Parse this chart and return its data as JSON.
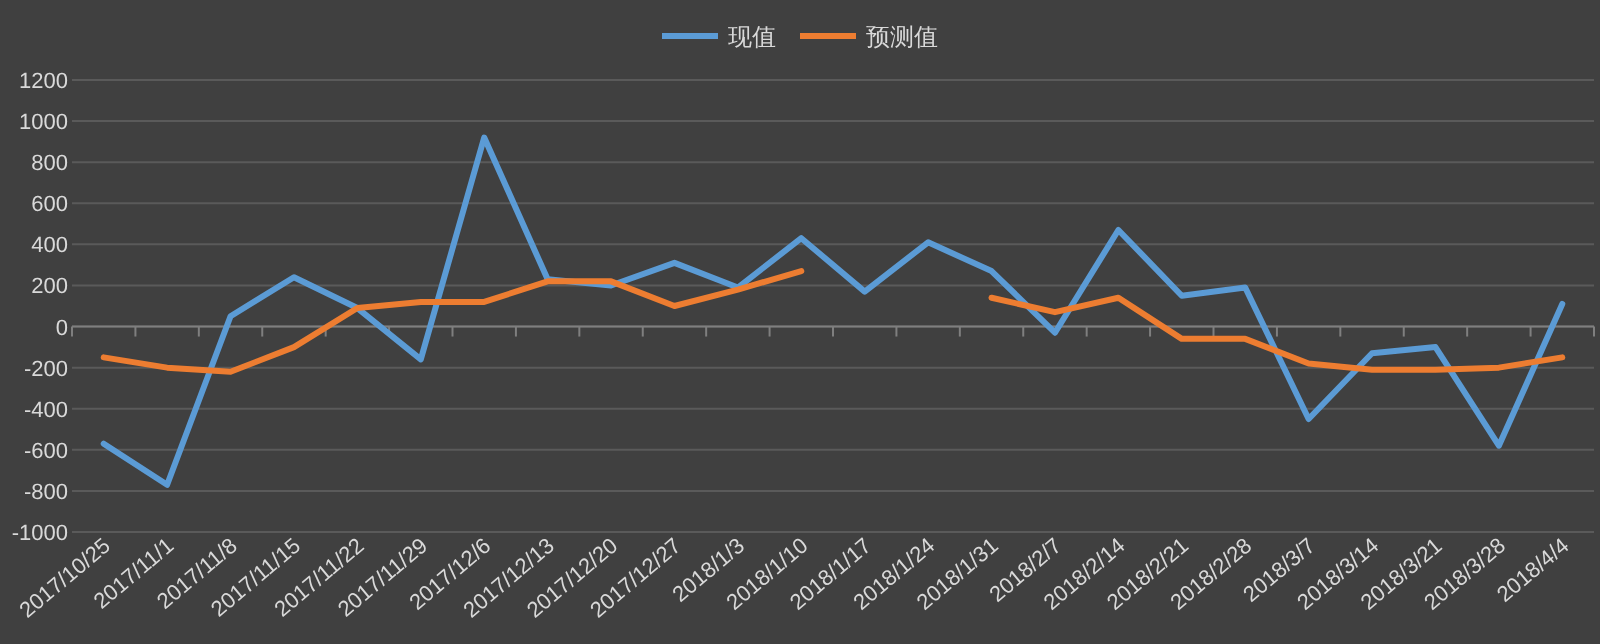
{
  "chart_data": {
    "type": "line",
    "categories": [
      "2017/10/25",
      "2017/11/1",
      "2017/11/8",
      "2017/11/15",
      "2017/11/22",
      "2017/11/29",
      "2017/12/6",
      "2017/12/13",
      "2017/12/20",
      "2017/12/27",
      "2018/1/3",
      "2018/1/10",
      "2018/1/17",
      "2018/1/24",
      "2018/1/31",
      "2018/2/7",
      "2018/2/14",
      "2018/2/21",
      "2018/2/28",
      "2018/3/7",
      "2018/3/14",
      "2018/3/21",
      "2018/3/28",
      "2018/4/4"
    ],
    "series": [
      {
        "name": "现值",
        "color": "#5b9bd5",
        "values": [
          -570,
          -770,
          50,
          240,
          90,
          -160,
          920,
          230,
          200,
          310,
          190,
          430,
          170,
          410,
          270,
          -30,
          470,
          150,
          190,
          -450,
          -130,
          -100,
          -580,
          110
        ]
      },
      {
        "name": "预测值",
        "color": "#ed7d31",
        "values": [
          -150,
          -200,
          -220,
          -100,
          90,
          120,
          120,
          220,
          220,
          100,
          180,
          270,
          null,
          null,
          140,
          70,
          140,
          -60,
          -60,
          -180,
          -210,
          -210,
          -200,
          -150
        ]
      }
    ],
    "ylim": [
      -1000,
      1200
    ],
    "yticks": [
      -1000,
      -800,
      -600,
      -400,
      -200,
      0,
      200,
      400,
      600,
      800,
      1000,
      1200
    ],
    "grid": "y",
    "legend": "top",
    "marker": "none",
    "line_style": "solid"
  }
}
